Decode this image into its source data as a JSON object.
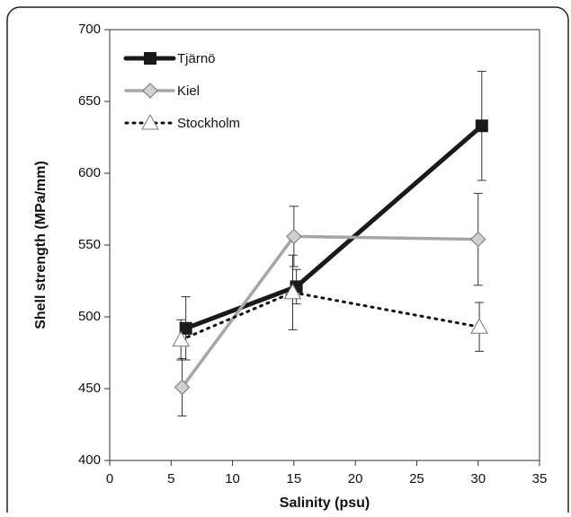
{
  "chart_data": {
    "type": "line",
    "x_label": "Salinity (psu)",
    "y_label": "Shell strength (MPa/mm)",
    "xlim": [
      0,
      35
    ],
    "xticks": [
      0,
      5,
      10,
      15,
      20,
      25,
      30,
      35
    ],
    "ylim": [
      400,
      700
    ],
    "yticks": [
      400,
      450,
      500,
      550,
      600,
      650,
      700
    ],
    "legend": "top-left",
    "series": [
      {
        "name": "Tjärnö",
        "color": "#1a1a1a",
        "marker": "square",
        "line_style": "solid",
        "line_width": 5,
        "x": [
          6.2,
          15.2,
          30.3
        ],
        "values": [
          492,
          521,
          633
        ],
        "errors": [
          22,
          12,
          38
        ]
      },
      {
        "name": "Kiel",
        "color": "#a6a6a6",
        "marker": "diamond",
        "line_style": "solid",
        "line_width": 3.5,
        "x": [
          5.9,
          15,
          30
        ],
        "values": [
          451,
          556,
          554
        ],
        "errors": [
          20,
          21,
          32
        ]
      },
      {
        "name": "Stockholm",
        "color": "#111111",
        "marker": "triangle",
        "line_style": "dotted",
        "line_width": 3,
        "x": [
          5.8,
          14.9,
          30.1
        ],
        "values": [
          484,
          517,
          493
        ],
        "errors": [
          14,
          26,
          17
        ]
      }
    ]
  }
}
